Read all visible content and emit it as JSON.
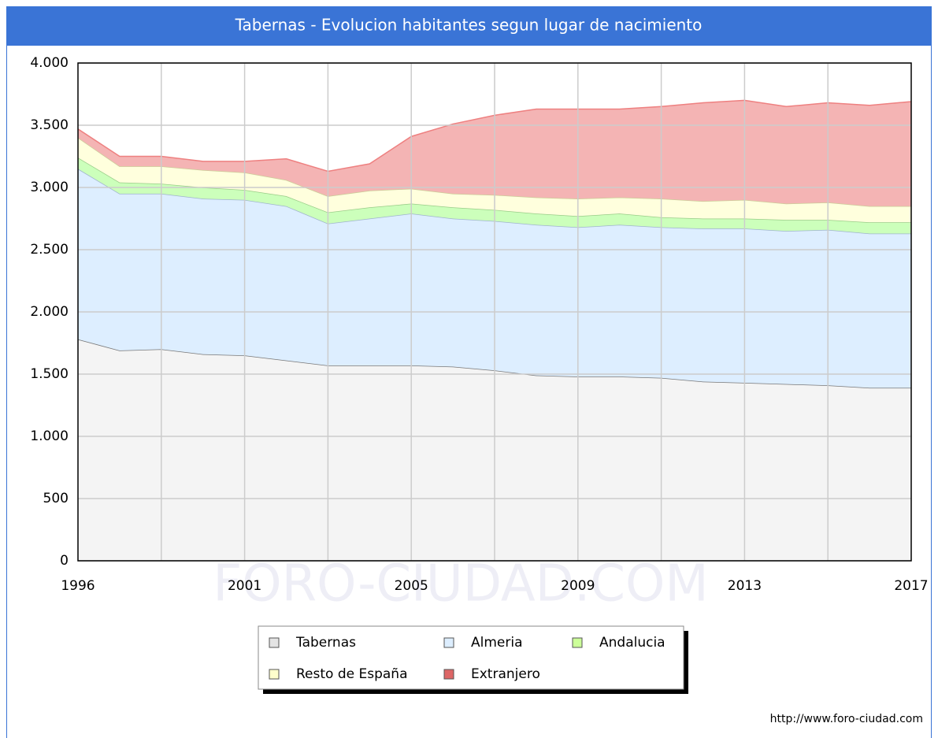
{
  "chart_data": {
    "type": "stacked_area",
    "title": "Tabernas - Evolucion habitantes segun lugar de nacimiento",
    "categories": [
      "1996",
      null,
      null,
      null,
      "2001",
      null,
      null,
      null,
      "2005",
      null,
      null,
      null,
      "2009",
      null,
      null,
      null,
      "2013",
      null,
      null,
      null,
      "2017"
    ],
    "series": [
      {
        "name": "Tabernas",
        "color": "#f4f4f4",
        "line": "#777777",
        "marker": "#e4e4e4",
        "values": [
          1780,
          1690,
          1700,
          1660,
          1650,
          1610,
          1570,
          1570,
          1570,
          1560,
          1530,
          1490,
          1480,
          1480,
          1470,
          1440,
          1430,
          1420,
          1410,
          1390,
          1390
        ]
      },
      {
        "name": "Almeria",
        "color": "#ddeeff",
        "line": "#9fb4cc",
        "marker": "#ddeeff",
        "values": [
          1370,
          1260,
          1250,
          1250,
          1250,
          1240,
          1140,
          1180,
          1220,
          1190,
          1200,
          1210,
          1200,
          1220,
          1210,
          1230,
          1240,
          1230,
          1250,
          1240,
          1240
        ]
      },
      {
        "name": "Andalucia",
        "color": "#ccffbb",
        "line": "#99cc88",
        "marker": "#ccff99",
        "values": [
          90,
          90,
          80,
          90,
          80,
          80,
          90,
          90,
          80,
          90,
          90,
          90,
          90,
          90,
          80,
          80,
          80,
          90,
          80,
          90,
          90
        ]
      },
      {
        "name": "Resto de España",
        "color": "#ffffdd",
        "line": "#cccc99",
        "marker": "#ffffcc",
        "values": [
          160,
          130,
          140,
          140,
          140,
          130,
          130,
          135,
          120,
          110,
          120,
          130,
          140,
          130,
          150,
          140,
          150,
          130,
          140,
          130,
          130
        ]
      },
      {
        "name": "Extranjero",
        "color": "#f4b4b4",
        "line": "#ee8080",
        "marker": "#dd6666",
        "values": [
          70,
          80,
          80,
          70,
          90,
          170,
          200,
          215,
          420,
          560,
          640,
          710,
          720,
          710,
          740,
          790,
          800,
          780,
          800,
          810,
          840
        ]
      }
    ],
    "ylim": [
      0,
      4000
    ],
    "yticks": [
      0,
      500,
      {
        "value": 1000,
        "label": "1.000"
      },
      {
        "value": 1500,
        "label": "1.500"
      },
      {
        "value": 2000,
        "label": "2.000"
      },
      {
        "value": 2500,
        "label": "2.500"
      },
      {
        "value": 3000,
        "label": "3.000"
      },
      {
        "value": 3500,
        "label": "3.500"
      },
      {
        "value": 4000,
        "label": "4.000"
      }
    ],
    "grid": true,
    "legend": "bottom",
    "watermark": "FORO-CIUDAD.COM",
    "source": "http://www.foro-ciudad.com"
  }
}
